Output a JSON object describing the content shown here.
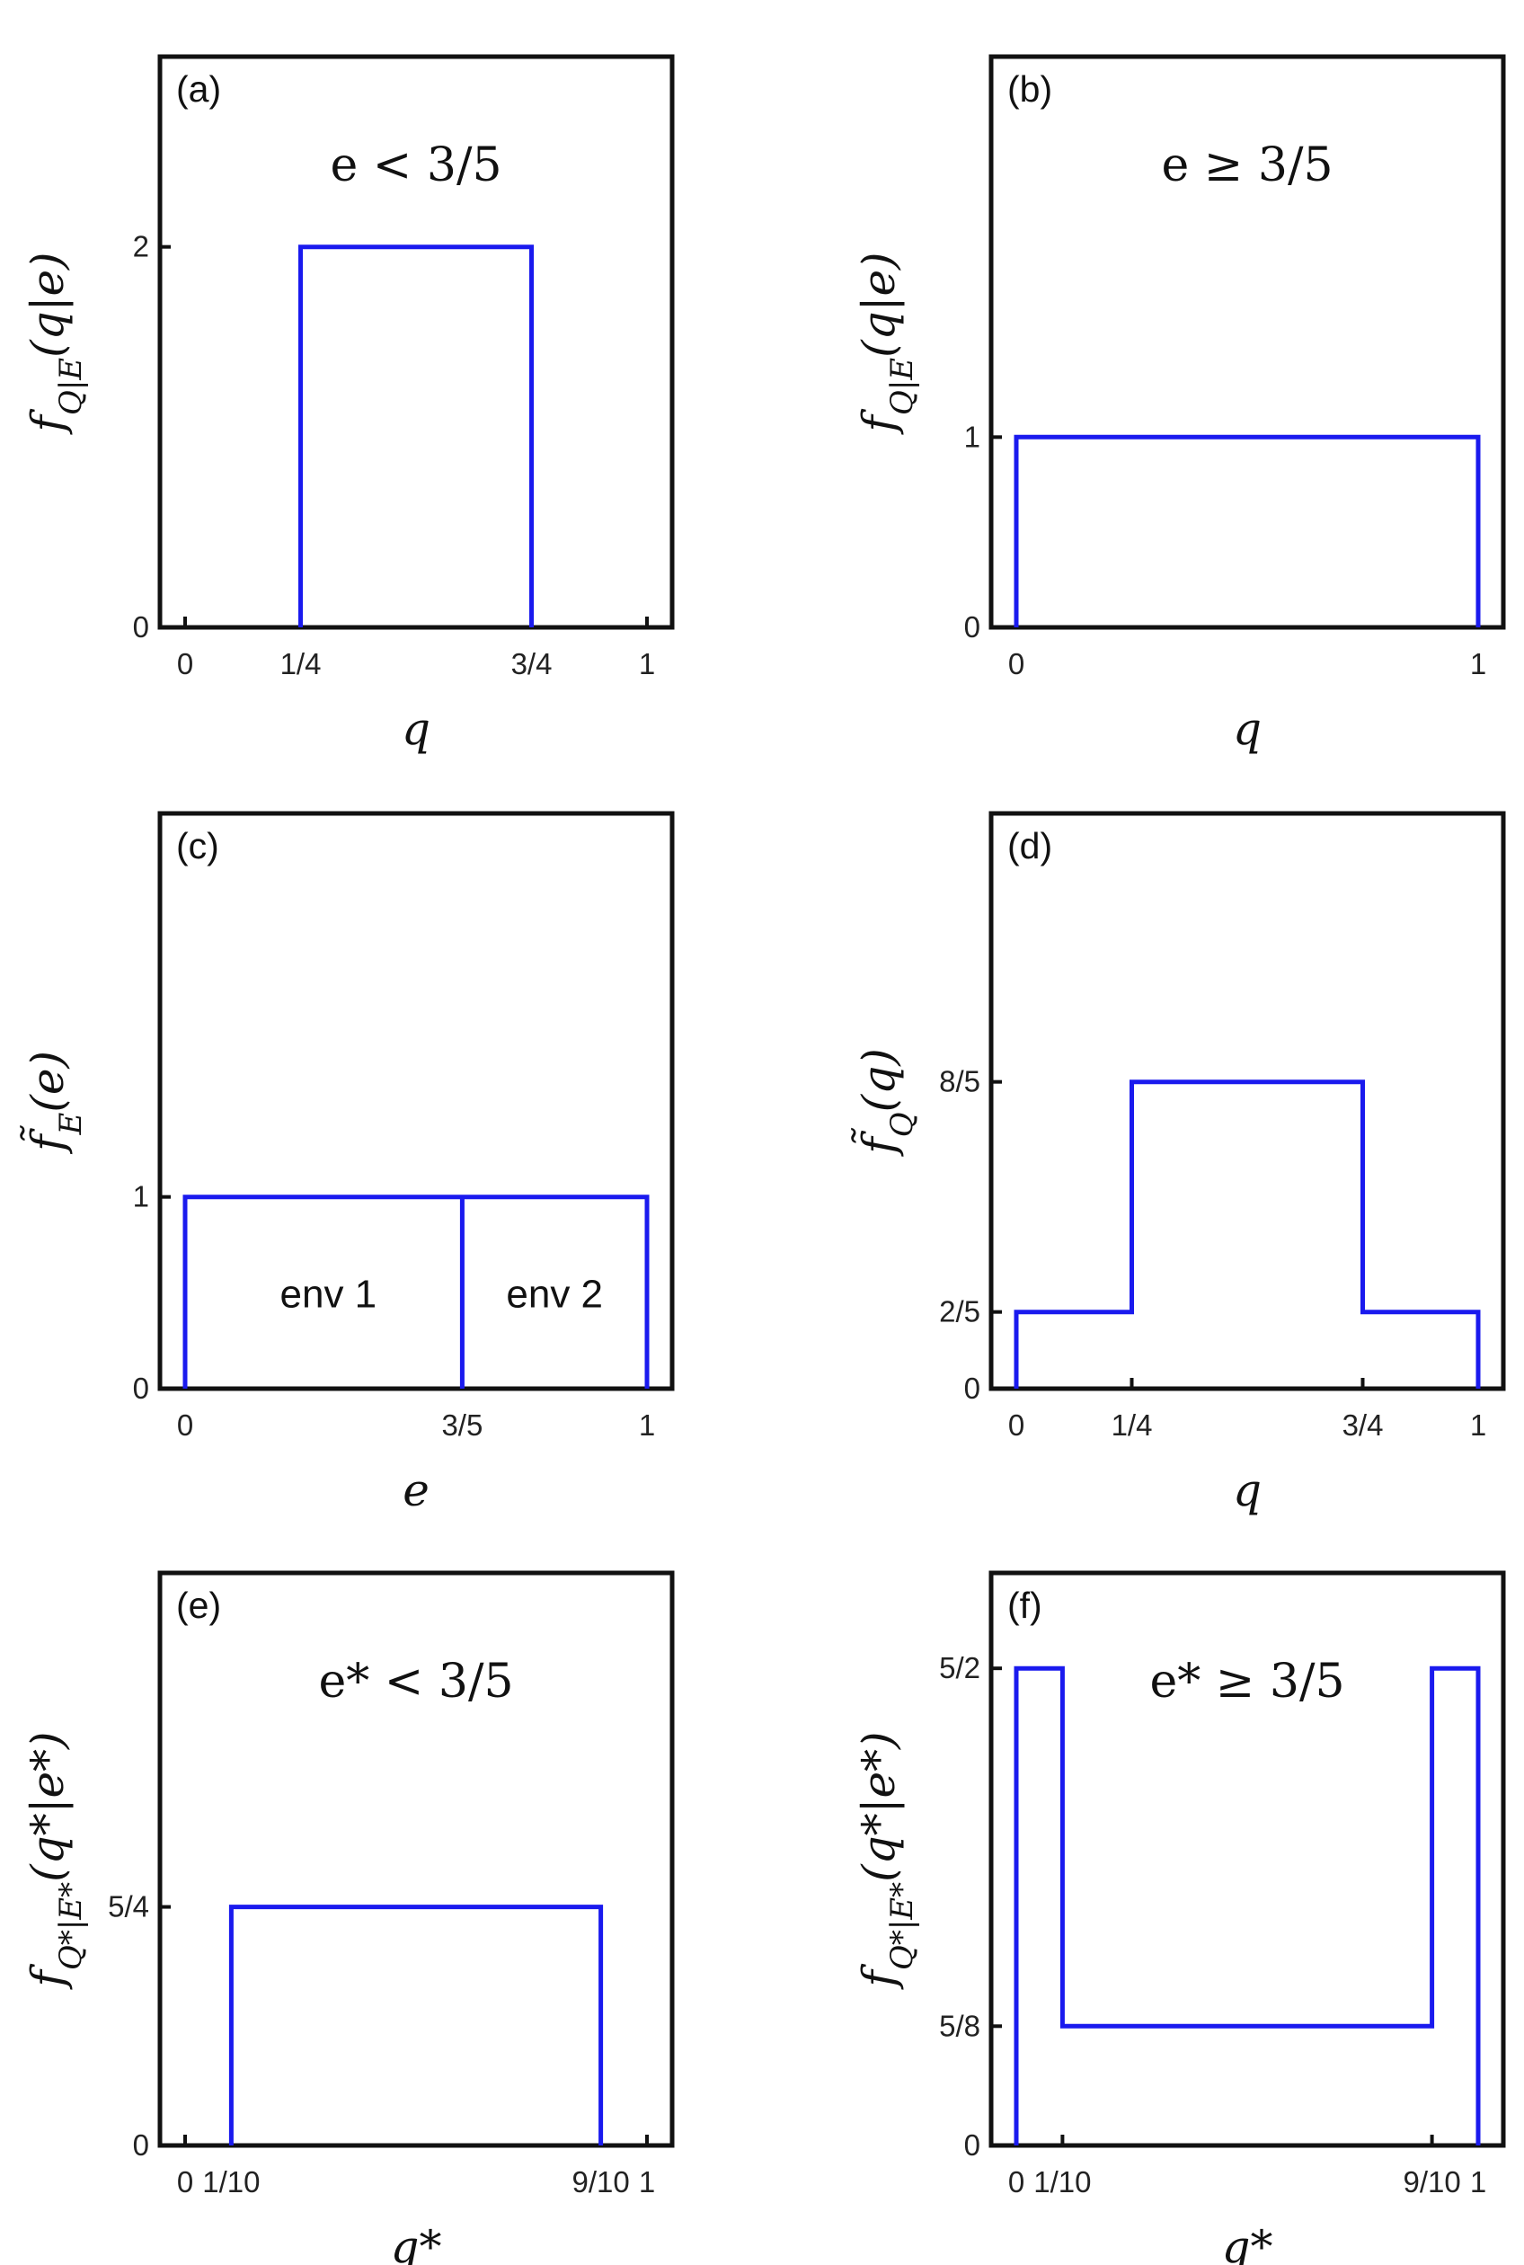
{
  "chart_data": [
    {
      "type": "line",
      "panel_label": "(a)",
      "annotation": "e < 3/5",
      "xlabel": "q",
      "ylabel": "f_{Q|E}(q|e)",
      "xlim": [
        0,
        1
      ],
      "ylim": [
        0,
        3
      ],
      "xticks": [
        {
          "v": 0,
          "t": "0"
        },
        {
          "v": 0.25,
          "t": "1/4"
        },
        {
          "v": 0.75,
          "t": "3/4"
        },
        {
          "v": 1,
          "t": "1"
        }
      ],
      "yticks": [
        {
          "v": 0,
          "t": "0"
        },
        {
          "v": 2,
          "t": "2"
        }
      ],
      "series": [
        {
          "color": "#1a1aee",
          "x": [
            0.25,
            0.25,
            0.75,
            0.75
          ],
          "y": [
            0,
            2,
            2,
            0
          ]
        }
      ],
      "inner_labels": []
    },
    {
      "type": "line",
      "panel_label": "(b)",
      "annotation": "e ≥ 3/5",
      "xlabel": "q",
      "ylabel": "f_{Q|E}(q|e)",
      "xlim": [
        0,
        1
      ],
      "ylim": [
        0,
        3
      ],
      "xticks": [
        {
          "v": 0,
          "t": "0"
        },
        {
          "v": 1,
          "t": "1"
        }
      ],
      "yticks": [
        {
          "v": 0,
          "t": "0"
        },
        {
          "v": 1,
          "t": "1"
        }
      ],
      "series": [
        {
          "color": "#1a1aee",
          "x": [
            0,
            0,
            1,
            1
          ],
          "y": [
            0,
            1,
            1,
            0
          ]
        }
      ],
      "inner_labels": []
    },
    {
      "type": "line",
      "panel_label": "(c)",
      "annotation": "",
      "xlabel": "e",
      "ylabel": "f̃_E(e)",
      "xlim": [
        0,
        1
      ],
      "ylim": [
        0,
        3
      ],
      "xticks": [
        {
          "v": 0,
          "t": "0"
        },
        {
          "v": 0.6,
          "t": "3/5"
        },
        {
          "v": 1,
          "t": "1"
        }
      ],
      "yticks": [
        {
          "v": 0,
          "t": "0"
        },
        {
          "v": 1,
          "t": "1"
        }
      ],
      "series": [
        {
          "color": "#1a1aee",
          "x": [
            0,
            0,
            1,
            1
          ],
          "y": [
            0,
            1,
            1,
            0
          ]
        },
        {
          "color": "#1a1aee",
          "x": [
            0.6,
            0.6
          ],
          "y": [
            0,
            1
          ]
        }
      ],
      "inner_labels": [
        {
          "text": "env 1",
          "x": 0.31,
          "y": 0.5
        },
        {
          "text": "env 2",
          "x": 0.8,
          "y": 0.5
        }
      ]
    },
    {
      "type": "line",
      "panel_label": "(d)",
      "annotation": "",
      "xlabel": "q",
      "ylabel": "f̃_Q(q)",
      "xlim": [
        0,
        1
      ],
      "ylim": [
        0,
        3
      ],
      "xticks": [
        {
          "v": 0,
          "t": "0"
        },
        {
          "v": 0.25,
          "t": "1/4"
        },
        {
          "v": 0.75,
          "t": "3/4"
        },
        {
          "v": 1,
          "t": "1"
        }
      ],
      "yticks": [
        {
          "v": 0,
          "t": "0"
        },
        {
          "v": 0.4,
          "t": "2/5"
        },
        {
          "v": 1.6,
          "t": "8/5"
        }
      ],
      "series": [
        {
          "color": "#1a1aee",
          "x": [
            0,
            0,
            0.25,
            0.25,
            0.75,
            0.75,
            1,
            1
          ],
          "y": [
            0,
            0.4,
            0.4,
            1.6,
            1.6,
            0.4,
            0.4,
            0
          ]
        }
      ],
      "inner_labels": []
    },
    {
      "type": "line",
      "panel_label": "(e)",
      "annotation": "e* < 3/5",
      "xlabel": "q*",
      "ylabel": "f_{Q*|E*}(q*|e*)",
      "xlim": [
        0,
        1
      ],
      "ylim": [
        0,
        3
      ],
      "xticks": [
        {
          "v": 0,
          "t": "0"
        },
        {
          "v": 0.1,
          "t": "1/10"
        },
        {
          "v": 0.9,
          "t": "9/10"
        },
        {
          "v": 1,
          "t": "1"
        }
      ],
      "yticks": [
        {
          "v": 0,
          "t": "0"
        },
        {
          "v": 1.25,
          "t": "5/4"
        }
      ],
      "series": [
        {
          "color": "#1a1aee",
          "x": [
            0.1,
            0.1,
            0.9,
            0.9
          ],
          "y": [
            0,
            1.25,
            1.25,
            0
          ]
        }
      ],
      "inner_labels": []
    },
    {
      "type": "line",
      "panel_label": "(f)",
      "annotation": "e* ≥ 3/5",
      "xlabel": "q*",
      "ylabel": "f_{Q*|E*}(q*|e*)",
      "xlim": [
        0,
        1
      ],
      "ylim": [
        0,
        3
      ],
      "xticks": [
        {
          "v": 0,
          "t": "0"
        },
        {
          "v": 0.1,
          "t": "1/10"
        },
        {
          "v": 0.9,
          "t": "9/10"
        },
        {
          "v": 1,
          "t": "1"
        }
      ],
      "yticks": [
        {
          "v": 0,
          "t": "0"
        },
        {
          "v": 0.625,
          "t": "5/8"
        },
        {
          "v": 2.5,
          "t": "5/2"
        }
      ],
      "series": [
        {
          "color": "#1a1aee",
          "x": [
            0,
            0,
            0.1,
            0.1,
            0.9,
            0.9,
            1,
            1
          ],
          "y": [
            0,
            2.5,
            2.5,
            0.625,
            0.625,
            2.5,
            2.5,
            0
          ]
        }
      ],
      "inner_labels": []
    }
  ]
}
